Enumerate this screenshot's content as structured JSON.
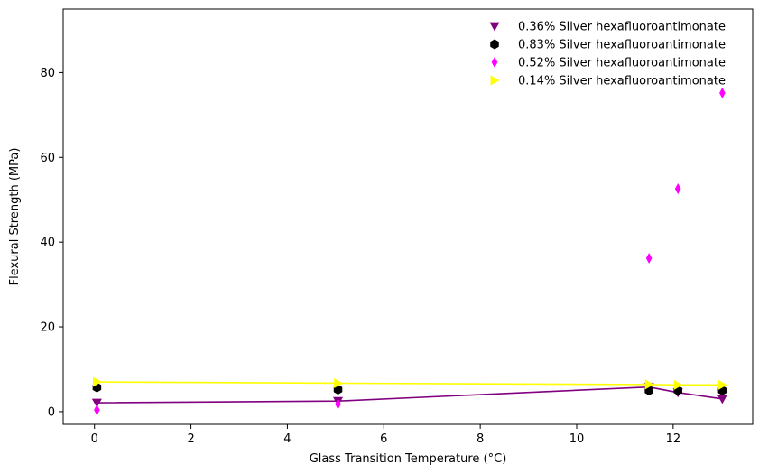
{
  "chart_data": {
    "type": "scatter",
    "title": "",
    "xlabel": "Glass Transition Temperature (°C)",
    "ylabel": "Flexural Strength (MPa)",
    "xlim": [
      -0.65,
      13.65
    ],
    "ylim": [
      -3.0,
      95.0
    ],
    "xticks": [
      0,
      2,
      4,
      6,
      8,
      10,
      12
    ],
    "yticks": [
      0,
      20,
      40,
      60,
      80
    ],
    "grid": false,
    "legend_position": "top-right",
    "series": [
      {
        "name": "0.36% Silver hexafluoroantimonate",
        "marker": "triangle-down",
        "color": "#800080",
        "line": true,
        "x": [
          0.05,
          5.05,
          11.5,
          12.1,
          13.02
        ],
        "y": [
          2.1,
          2.5,
          5.8,
          4.5,
          3.0
        ]
      },
      {
        "name": "0.83% Silver hexafluoroantimonate",
        "marker": "hexagon",
        "color": "#000000",
        "line": false,
        "x": [
          0.05,
          5.05,
          11.5,
          12.1,
          13.02
        ],
        "y": [
          5.7,
          5.2,
          5.0,
          5.0,
          5.0
        ]
      },
      {
        "name": "0.52% Silver hexafluoroantimonate",
        "marker": "thin-diamond",
        "color": "#ff00ff",
        "line": false,
        "x": [
          0.05,
          5.05,
          11.5,
          12.1,
          13.02
        ],
        "y": [
          0.4,
          1.8,
          36.2,
          52.6,
          75.2
        ]
      },
      {
        "name": "0.14% Silver hexafluoroantimonate",
        "marker": "triangle-right",
        "color": "#ffff00",
        "line": true,
        "x": [
          0.05,
          5.05,
          11.5,
          12.1,
          13.02
        ],
        "y": [
          7.0,
          6.7,
          6.4,
          6.3,
          6.3
        ]
      }
    ]
  }
}
